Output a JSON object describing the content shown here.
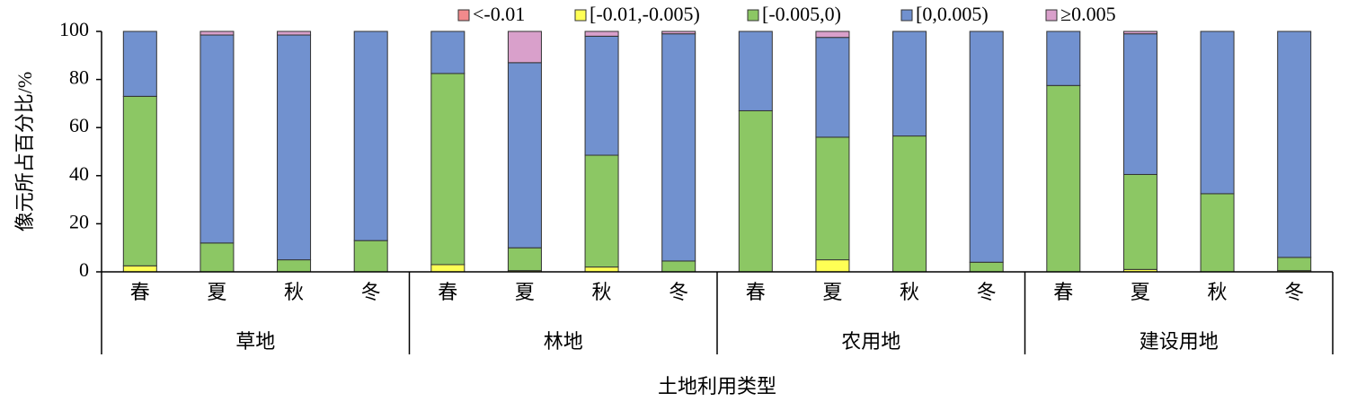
{
  "chart_data": {
    "type": "stacked_bar",
    "y_label": "像元所占百分比/%",
    "x_label": "土地利用类型",
    "categories": [
      "春",
      "夏",
      "秋",
      "冬",
      "春",
      "夏",
      "秋",
      "冬",
      "春",
      "夏",
      "秋",
      "冬",
      "春",
      "夏",
      "秋",
      "冬"
    ],
    "groups": [
      "草地",
      "林地",
      "农用地",
      "建设用地"
    ],
    "ylim": [
      0,
      100
    ],
    "yticks": [
      0,
      20,
      40,
      60,
      80,
      100
    ],
    "series": [
      {
        "name": "<-0.01",
        "color": "#f28a8c",
        "values": [
          0,
          0,
          0,
          0,
          0,
          0,
          0,
          0,
          0,
          0,
          0,
          0,
          0,
          0,
          0,
          0
        ]
      },
      {
        "name": "[-0.01,-0.005)",
        "color": "#ffff55",
        "values": [
          2.5,
          0,
          0,
          0,
          3,
          0.5,
          2,
          0,
          0,
          5,
          0,
          0,
          0,
          1,
          0,
          0.5
        ]
      },
      {
        "name": "[-0.005,0)",
        "color": "#8cc764",
        "values": [
          70.5,
          12,
          5,
          13,
          79.5,
          9.5,
          46.5,
          4.5,
          67,
          51,
          56.5,
          4,
          77.5,
          39.5,
          32.5,
          5.5
        ]
      },
      {
        "name": "[0,0.005)",
        "color": "#7191cf",
        "values": [
          27,
          86.5,
          93.5,
          87,
          17.5,
          77,
          49.5,
          94.5,
          33,
          41.5,
          43.5,
          96,
          22.5,
          58.5,
          67.5,
          94
        ]
      },
      {
        "name": "≥0.005",
        "color": "#d9a0cb",
        "values": [
          0,
          1.5,
          1.5,
          0,
          0,
          13,
          2,
          1,
          0,
          2.5,
          0,
          0,
          0,
          1,
          0,
          0
        ]
      }
    ]
  }
}
